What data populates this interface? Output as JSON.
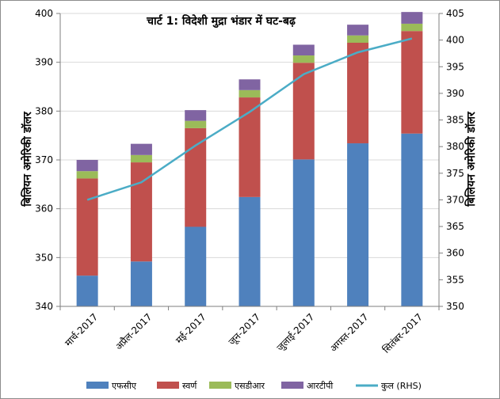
{
  "chart_data": {
    "type": "bar",
    "title": "चार्ट 1: विदेशी मुद्रा भंडार में घट-बढ़",
    "ylabel": "बिलियन अमेरिकी डॉलर",
    "y2label": "बिलियन अमेरिकी डॉलर",
    "ylim": [
      340,
      400
    ],
    "yticks": [
      340,
      350,
      360,
      370,
      380,
      390,
      400
    ],
    "y2lim": [
      350,
      405
    ],
    "y2ticks": [
      350,
      355,
      360,
      365,
      370,
      375,
      380,
      385,
      390,
      395,
      400,
      405
    ],
    "categories": [
      "मार्च-2017",
      "अप्रैल-2017",
      "मई-2017",
      "जून-2017",
      "जुलाई-2017",
      "अगस्त-2017",
      "सितंबर-2017"
    ],
    "stacked": true,
    "legend_position": "bottom",
    "series": [
      {
        "name": "एफसीए",
        "color": "#4f81bd",
        "values": [
          346.3,
          349.2,
          356.3,
          362.4,
          370.1,
          373.4,
          375.4
        ]
      },
      {
        "name": "स्वर्ण",
        "color": "#c0504d",
        "values": [
          19.9,
          20.3,
          20.2,
          20.4,
          19.8,
          20.6,
          21.0
        ]
      },
      {
        "name": "एसडीआर",
        "color": "#9bbb59",
        "values": [
          1.5,
          1.5,
          1.5,
          1.5,
          1.5,
          1.5,
          1.5
        ]
      },
      {
        "name": "आरटीपी",
        "color": "#8064a2",
        "values": [
          2.3,
          2.3,
          2.2,
          2.2,
          2.2,
          2.2,
          2.4
        ]
      }
    ],
    "line_series": {
      "name": "कुल (RHS)",
      "color": "#4bacc6",
      "axis": "right",
      "values": [
        370.0,
        373.3,
        380.2,
        386.5,
        393.6,
        397.7,
        400.3
      ]
    }
  }
}
